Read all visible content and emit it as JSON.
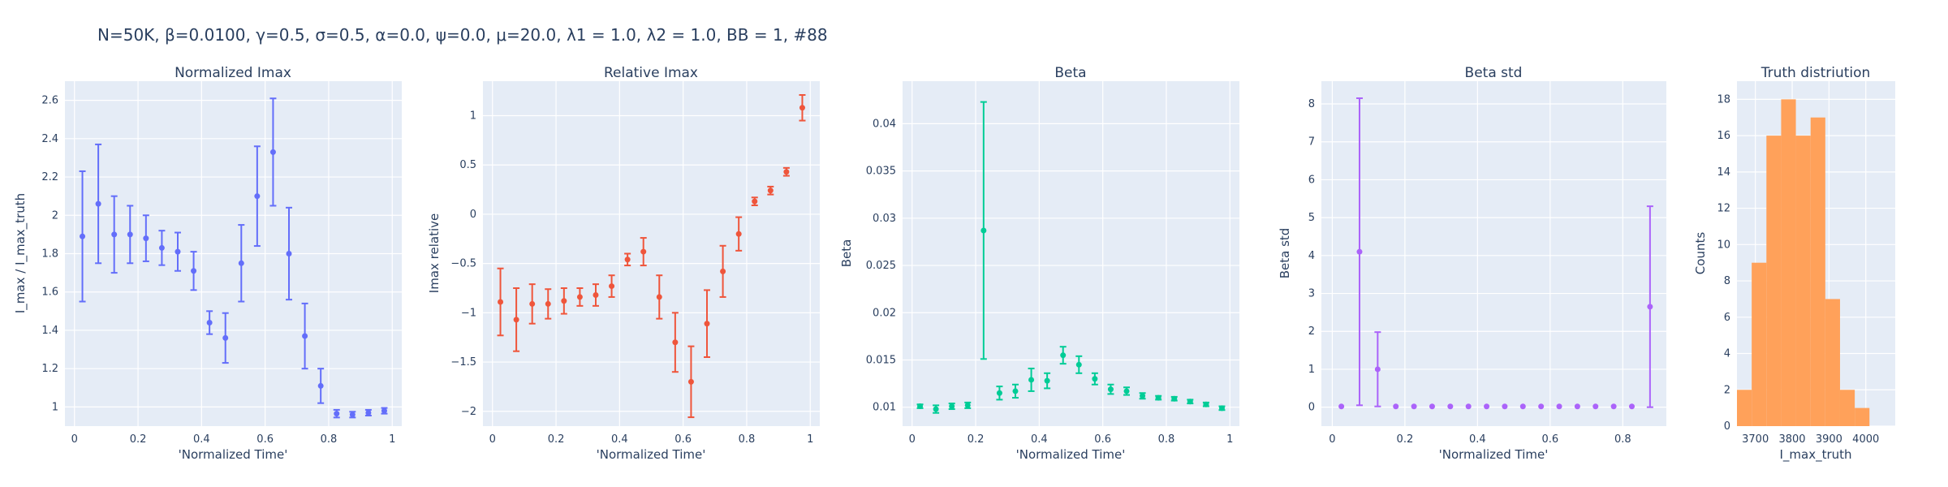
{
  "title": "N=50K, β=0.0100, γ=0.5, σ=0.5,  α=0.0, ψ=0.0, μ=20.0, λ1 = 1.0, λ2 = 1.0, BB = 1, #88",
  "chart_data": [
    {
      "type": "scatter",
      "title": "Normalized Imax",
      "xlabel": "'Normalized Time'",
      "ylabel": "I_max / I_max_truth",
      "xlim": [
        -0.03,
        1.03
      ],
      "ylim": [
        0.9,
        2.7
      ],
      "xticks": [
        0,
        0.2,
        0.4,
        0.6,
        0.8,
        1
      ],
      "xtick_labels": [
        "0",
        "0.2",
        "0.4",
        "0.6",
        "0.8",
        "1"
      ],
      "yticks": [
        1,
        1.2,
        1.4,
        1.6,
        1.8,
        2,
        2.2,
        2.4,
        2.6
      ],
      "ytick_labels": [
        "1",
        "1.2",
        "1.4",
        "1.6",
        "1.8",
        "2",
        "2.2",
        "2.4",
        "2.6"
      ],
      "color": "#636efa",
      "x": [
        0.025,
        0.075,
        0.125,
        0.175,
        0.225,
        0.275,
        0.325,
        0.375,
        0.425,
        0.475,
        0.525,
        0.575,
        0.625,
        0.675,
        0.725,
        0.775,
        0.825,
        0.875,
        0.925,
        0.975
      ],
      "y": [
        1.89,
        2.06,
        1.9,
        1.9,
        1.88,
        1.83,
        1.81,
        1.71,
        1.44,
        1.36,
        1.75,
        2.1,
        2.33,
        1.8,
        1.37,
        1.11,
        0.965,
        0.96,
        0.97,
        0.98
      ],
      "err": [
        0.34,
        0.31,
        0.2,
        0.15,
        0.12,
        0.09,
        0.1,
        0.1,
        0.06,
        0.13,
        0.2,
        0.26,
        0.28,
        0.24,
        0.17,
        0.09,
        0.02,
        0.015,
        0.015,
        0.015
      ]
    },
    {
      "type": "scatter",
      "title": "Relative Imax",
      "xlabel": "'Normalized Time'",
      "ylabel": "Imax relative",
      "xlim": [
        -0.03,
        1.03
      ],
      "ylim": [
        -2.15,
        1.35
      ],
      "xticks": [
        0,
        0.2,
        0.4,
        0.6,
        0.8,
        1
      ],
      "xtick_labels": [
        "0",
        "0.2",
        "0.4",
        "0.6",
        "0.8",
        "1"
      ],
      "yticks": [
        -2,
        -1.5,
        -1,
        -0.5,
        0,
        0.5,
        1
      ],
      "ytick_labels": [
        "−2",
        "−1.5",
        "−1",
        "−0.5",
        "0",
        "0.5",
        "1"
      ],
      "color": "#ef553b",
      "x": [
        0.025,
        0.075,
        0.125,
        0.175,
        0.225,
        0.275,
        0.325,
        0.375,
        0.425,
        0.475,
        0.525,
        0.575,
        0.625,
        0.675,
        0.725,
        0.775,
        0.825,
        0.875,
        0.925,
        0.975
      ],
      "y": [
        -0.89,
        -1.07,
        -0.91,
        -0.91,
        -0.88,
        -0.84,
        -0.82,
        -0.73,
        -0.46,
        -0.38,
        -0.84,
        -1.3,
        -1.7,
        -1.11,
        -0.58,
        -0.2,
        0.13,
        0.24,
        0.43,
        1.08
      ],
      "err": [
        0.34,
        0.32,
        0.2,
        0.15,
        0.13,
        0.09,
        0.11,
        0.11,
        0.06,
        0.14,
        0.22,
        0.3,
        0.36,
        0.34,
        0.26,
        0.17,
        0.04,
        0.04,
        0.04,
        0.13
      ]
    },
    {
      "type": "scatter",
      "title": "Beta",
      "xlabel": "'Normalized Time'",
      "ylabel": "Beta",
      "xlim": [
        -0.03,
        1.03
      ],
      "ylim": [
        0.008,
        0.0445
      ],
      "xticks": [
        0,
        0.2,
        0.4,
        0.6,
        0.8,
        1
      ],
      "xtick_labels": [
        "0",
        "0.2",
        "0.4",
        "0.6",
        "0.8",
        "1"
      ],
      "yticks": [
        0.01,
        0.015,
        0.02,
        0.025,
        0.03,
        0.035,
        0.04
      ],
      "ytick_labels": [
        "0.01",
        "0.015",
        "0.02",
        "0.025",
        "0.03",
        "0.035",
        "0.04"
      ],
      "color": "#00cc96",
      "x": [
        0.025,
        0.075,
        0.125,
        0.175,
        0.225,
        0.275,
        0.325,
        0.375,
        0.425,
        0.475,
        0.525,
        0.575,
        0.625,
        0.675,
        0.725,
        0.775,
        0.825,
        0.875,
        0.925,
        0.975
      ],
      "y": [
        0.0101,
        0.0098,
        0.0101,
        0.0102,
        0.0287,
        0.0115,
        0.0117,
        0.0129,
        0.0128,
        0.0155,
        0.0145,
        0.013,
        0.0119,
        0.0117,
        0.0112,
        0.011,
        0.0109,
        0.0106,
        0.0103,
        0.0099
      ],
      "err": [
        0.0002,
        0.0004,
        0.0003,
        0.0003,
        0.0136,
        0.0007,
        0.0007,
        0.0012,
        0.0008,
        0.0009,
        0.0009,
        0.0006,
        0.0005,
        0.0004,
        0.0003,
        0.0002,
        0.0002,
        0.0002,
        0.0002,
        0.0002
      ]
    },
    {
      "type": "scatter",
      "title": "Beta std",
      "xlabel": "'Normalized Time'",
      "ylabel": "Beta std",
      "xlim": [
        -0.03,
        0.92
      ],
      "ylim": [
        -0.5,
        8.6
      ],
      "xticks": [
        0,
        0.2,
        0.4,
        0.6,
        0.8
      ],
      "xtick_labels": [
        "0",
        "0.2",
        "0.4",
        "0.6",
        "0.8"
      ],
      "yticks": [
        0,
        1,
        2,
        3,
        4,
        5,
        6,
        7,
        8
      ],
      "ytick_labels": [
        "0",
        "1",
        "2",
        "3",
        "4",
        "5",
        "6",
        "7",
        "8"
      ],
      "color": "#ab63fa",
      "x": [
        0.025,
        0.075,
        0.125,
        0.175,
        0.225,
        0.275,
        0.325,
        0.375,
        0.425,
        0.475,
        0.525,
        0.575,
        0.625,
        0.675,
        0.725,
        0.775,
        0.825,
        0.875
      ],
      "y": [
        0.02,
        4.1,
        1.0,
        0.02,
        0.02,
        0.02,
        0.02,
        0.02,
        0.02,
        0.02,
        0.02,
        0.02,
        0.02,
        0.02,
        0.02,
        0.02,
        0.02,
        2.65
      ],
      "err": [
        0,
        4.05,
        0.98,
        0,
        0,
        0,
        0,
        0,
        0,
        0,
        0,
        0,
        0,
        0,
        0,
        0,
        0,
        2.65
      ]
    },
    {
      "type": "bar",
      "title": "Truth distriution",
      "xlabel": "I_max_truth",
      "ylabel": "Counts",
      "xlim": [
        3650,
        4080
      ],
      "ylim": [
        0,
        19
      ],
      "xticks": [
        3700,
        3800,
        3900,
        4000
      ],
      "xtick_labels": [
        "3700",
        "3800",
        "3900",
        "4000"
      ],
      "yticks": [
        0,
        2,
        4,
        6,
        8,
        10,
        12,
        14,
        16,
        18
      ],
      "ytick_labels": [
        "0",
        "2",
        "4",
        "6",
        "8",
        "10",
        "12",
        "14",
        "16",
        "18"
      ],
      "color": "#ffa15a",
      "bin_start": [
        3650,
        3690,
        3730,
        3770,
        3810,
        3850,
        3890,
        3930,
        3970,
        4010,
        4050
      ],
      "bin_width": 40,
      "values": [
        2,
        9,
        16,
        18,
        16,
        17,
        7,
        2,
        1,
        0,
        0
      ]
    }
  ]
}
